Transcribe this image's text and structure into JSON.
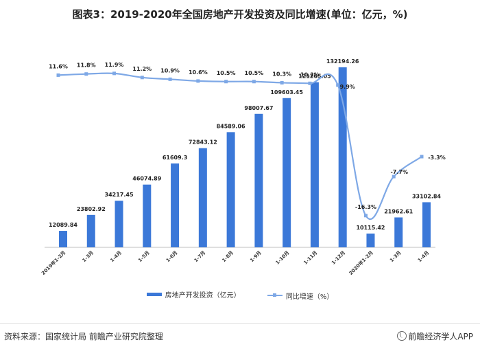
{
  "title": "图表3：2019-2020年全国房地产开发投资及同比增速(单位：亿元，%)",
  "footer": {
    "source": "资料来源：国家统计局 前瞻产业研究院整理",
    "brand": "前瞻经济学人APP"
  },
  "colors": {
    "bar": "#3b78d8",
    "line": "#7ea8e6"
  },
  "chart_data": {
    "type": "bar",
    "categories": [
      "2019年1-2月",
      "1-3月",
      "1-4月",
      "1-5月",
      "1-6月",
      "1-7月",
      "1-8月",
      "1-9月",
      "1-10月",
      "1-11月",
      "1-12月",
      "2020年1-2月",
      "1-3月",
      "1-4月"
    ],
    "series": [
      {
        "name": "房地产开发投资（亿元）",
        "type": "bar",
        "values": [
          12089.84,
          23802.92,
          34217.45,
          46074.89,
          61609.3,
          72843.12,
          84589.06,
          98007.67,
          109603.45,
          121265.05,
          132194.26,
          10115.42,
          21962.61,
          33102.84
        ],
        "labels": [
          "12089.84",
          "23802.92",
          "34217.45",
          "46074.89",
          "61609.3",
          "72843.12",
          "84589.06",
          "98007.67",
          "109603.45",
          "121265.05",
          "132194.26",
          "10115.42",
          "21962.61",
          "33102.84"
        ]
      },
      {
        "name": "同比增速（%）",
        "type": "line",
        "values": [
          11.6,
          11.8,
          11.9,
          11.2,
          10.9,
          10.6,
          10.5,
          10.5,
          10.3,
          10.2,
          9.9,
          -16.3,
          -7.7,
          -3.3
        ],
        "labels": [
          "11.6%",
          "11.8%",
          "11.9%",
          "11.2%",
          "10.9%",
          "10.6%",
          "10.5%",
          "10.5%",
          "10.3%",
          "10.2%",
          "9.9%",
          "-16.3%",
          "-7.7%",
          "-3.3%"
        ]
      }
    ],
    "legend_position": "bottom",
    "grid": false
  }
}
